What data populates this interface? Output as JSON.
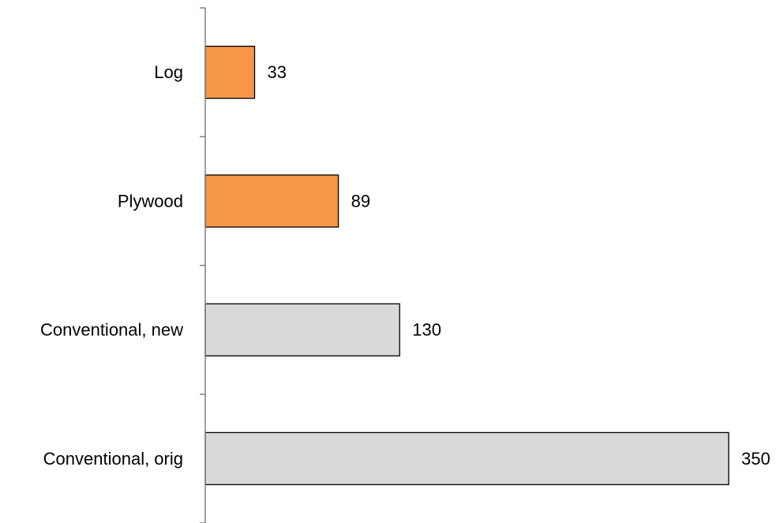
{
  "chart_data": {
    "type": "bar",
    "orientation": "horizontal",
    "categories": [
      "Log",
      "Plywood",
      "Conventional, new",
      "Conventional, orig"
    ],
    "values": [
      33,
      89,
      130,
      350
    ],
    "data_labels": [
      "33",
      "89",
      "130",
      "350"
    ],
    "bar_colors": [
      "#F79646",
      "#F79646",
      "#D9D9D9",
      "#D9D9D9"
    ],
    "bar_outline_color": "#000000",
    "axis_color": "#808080",
    "title": "",
    "xlabel": "",
    "ylabel": "",
    "xlim": [
      0,
      350
    ],
    "grid": false,
    "legend": "none"
  }
}
